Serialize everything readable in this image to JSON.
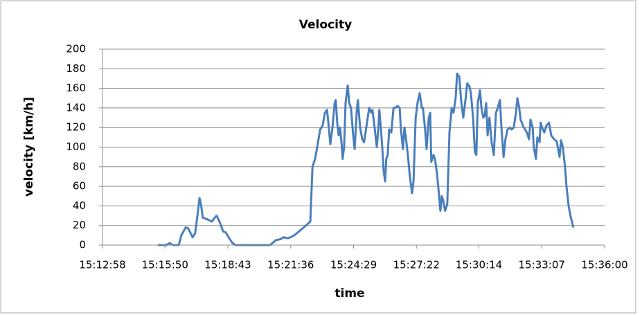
{
  "chart_data": {
    "type": "line",
    "title": "Velocity",
    "xlabel": "time",
    "ylabel": "velocity [km/h]",
    "x": [
      "15:15:30",
      "15:15:53",
      "15:16:03",
      "15:16:12",
      "15:16:28",
      "15:16:35",
      "15:16:47",
      "15:16:54",
      "15:17:06",
      "15:17:13",
      "15:17:21",
      "15:17:25",
      "15:17:29",
      "15:17:34",
      "15:17:48",
      "15:17:59",
      "15:18:07",
      "15:18:12",
      "15:18:20",
      "15:18:30",
      "15:18:37",
      "15:18:45",
      "15:18:56",
      "15:19:04",
      "15:20:39",
      "15:20:49",
      "15:20:55",
      "15:21:08",
      "15:21:17",
      "15:21:27",
      "15:21:36",
      "15:21:46",
      "15:21:59",
      "15:22:15",
      "15:22:30",
      "15:22:36",
      "15:22:43",
      "15:22:49",
      "15:22:57",
      "15:23:04",
      "15:23:10",
      "15:23:16",
      "15:23:21",
      "15:23:25",
      "15:23:31",
      "15:23:37",
      "15:23:40",
      "15:23:44",
      "15:23:48",
      "15:23:52",
      "15:23:56",
      "15:23:59",
      "15:24:03",
      "15:24:07",
      "15:24:13",
      "15:24:17",
      "15:24:22",
      "15:24:28",
      "15:24:32",
      "15:24:38",
      "15:24:41",
      "15:24:47",
      "15:24:53",
      "15:24:58",
      "15:25:06",
      "15:25:12",
      "15:25:18",
      "15:25:21",
      "15:25:27",
      "15:25:33",
      "15:25:37",
      "15:25:40",
      "15:25:44",
      "15:25:48",
      "15:25:52",
      "15:25:56",
      "15:25:59",
      "15:26:03",
      "15:26:07",
      "15:26:13",
      "15:26:19",
      "15:26:24",
      "15:26:30",
      "15:26:36",
      "15:26:39",
      "15:26:45",
      "15:26:49",
      "15:26:53",
      "15:26:59",
      "15:27:04",
      "15:27:10",
      "15:27:14",
      "15:27:20",
      "15:27:25",
      "15:27:31",
      "15:27:37",
      "15:27:40",
      "15:27:46",
      "15:27:50",
      "15:27:56",
      "15:28:00",
      "15:28:03",
      "15:28:09",
      "15:28:13",
      "15:28:19",
      "15:28:24",
      "15:28:28",
      "15:28:32",
      "15:28:36",
      "15:28:41",
      "15:28:47",
      "15:28:53",
      "15:28:59",
      "15:29:04",
      "15:29:10",
      "15:29:14",
      "15:29:20",
      "15:29:25",
      "15:29:31",
      "15:29:37",
      "15:29:42",
      "15:29:48",
      "15:29:52",
      "15:29:58",
      "15:30:03",
      "15:30:07",
      "15:30:11",
      "15:30:17",
      "15:30:21",
      "15:30:26",
      "15:30:30",
      "15:30:34",
      "15:30:38",
      "15:30:43",
      "15:30:49",
      "15:30:55",
      "15:31:01",
      "15:31:06",
      "15:31:12",
      "15:31:16",
      "15:31:22",
      "15:31:27",
      "15:31:33",
      "15:31:39",
      "15:31:44",
      "15:31:50",
      "15:31:56",
      "15:32:00",
      "15:32:05",
      "15:32:09",
      "15:32:15",
      "15:32:21",
      "15:32:26",
      "15:32:32",
      "15:32:36",
      "15:32:42",
      "15:32:45",
      "15:32:51",
      "15:32:55",
      "15:33:01",
      "15:33:04",
      "15:33:08",
      "15:33:14",
      "15:33:20",
      "15:33:27",
      "15:33:33",
      "15:33:41",
      "15:33:48",
      "15:33:56",
      "15:34:00",
      "15:34:05",
      "15:34:11",
      "15:34:15",
      "15:34:21",
      "15:34:26",
      "15:34:34"
    ],
    "series": [
      {
        "name": "velocity",
        "color": "#4a7ebb",
        "values": [
          0,
          0,
          2,
          0,
          0,
          10,
          18,
          17,
          8,
          12,
          35,
          48,
          42,
          28,
          26,
          24,
          28,
          30,
          24,
          14,
          13,
          8,
          2,
          0,
          0,
          3,
          5,
          6,
          8,
          7,
          8,
          10,
          14,
          19,
          24,
          80,
          88,
          100,
          118,
          122,
          135,
          138,
          120,
          103,
          120,
          145,
          148,
          125,
          112,
          120,
          104,
          88,
          100,
          145,
          163,
          145,
          140,
          112,
          98,
          138,
          148,
          120,
          108,
          105,
          125,
          140,
          135,
          138,
          120,
          100,
          118,
          138,
          120,
          100,
          75,
          65,
          88,
          92,
          118,
          115,
          140,
          140,
          142,
          140,
          120,
          98,
          120,
          110,
          90,
          70,
          53,
          65,
          130,
          145,
          155,
          140,
          140,
          118,
          98,
          130,
          135,
          85,
          92,
          88,
          72,
          52,
          35,
          50,
          45,
          35,
          42,
          115,
          140,
          135,
          150,
          175,
          172,
          148,
          130,
          148,
          165,
          162,
          155,
          130,
          95,
          92,
          145,
          158,
          140,
          130,
          132,
          145,
          112,
          130,
          105,
          92,
          135,
          140,
          148,
          120,
          90,
          108,
          118,
          120,
          118,
          120,
          135,
          150,
          140,
          128,
          122,
          118,
          115,
          108,
          128,
          120,
          100,
          88,
          110,
          105,
          125,
          120,
          115,
          122,
          125,
          112,
          108,
          106,
          90,
          107,
          100,
          80,
          60,
          40,
          30,
          18
        ]
      }
    ],
    "xlim": [
      "15:12:58",
      "15:36:00"
    ],
    "xticks": [
      "15:12:58",
      "15:15:50",
      "15:18:43",
      "15:21:36",
      "15:24:29",
      "15:27:22",
      "15:30:14",
      "15:33:07",
      "15:36:00"
    ],
    "ylim": [
      0,
      200
    ],
    "yticks": [
      0,
      20,
      40,
      60,
      80,
      100,
      120,
      140,
      160,
      180,
      200
    ],
    "grid": true
  }
}
